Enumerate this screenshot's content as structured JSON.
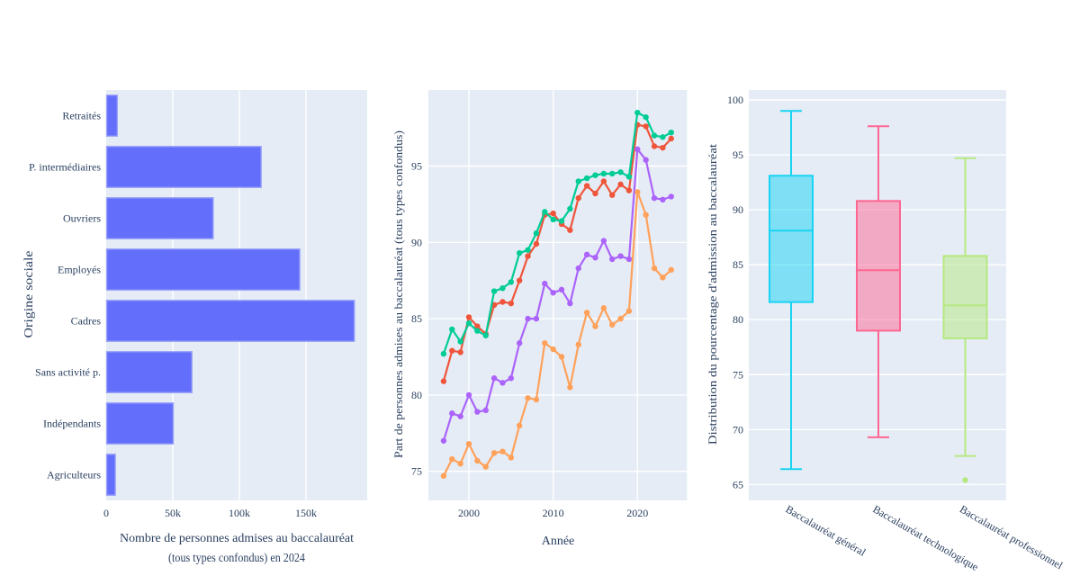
{
  "figure": {
    "background": "#ffffff",
    "plot_background": "#e5ecf6",
    "grid_color": "#ffffff",
    "text_color": "#2a3f5f"
  },
  "chart_data": [
    {
      "id": "bar-origine-sociale",
      "type": "bar",
      "orientation": "horizontal",
      "ylabel": "Origine sociale",
      "xlabel_lines": [
        "Nombre de personnes admises au baccalauréat",
        "(tous types confondus) en 2024"
      ],
      "categories": [
        "Retraités",
        "P. intermédiaires",
        "Ouvriers",
        "Employés",
        "Cadres",
        "Sans activité p.",
        "Indépendants",
        "Agriculteurs"
      ],
      "values": [
        8000,
        116000,
        80000,
        145000,
        186000,
        64000,
        50000,
        6500
      ],
      "bar_color": "#636EFA",
      "bar_edge_color": "#9aa3f8",
      "xlim": [
        0,
        196000
      ],
      "xticks": {
        "values": [
          0,
          50000,
          100000,
          150000
        ],
        "labels": [
          "0",
          "50k",
          "100k",
          "150k"
        ]
      },
      "grid": true
    },
    {
      "id": "line-part-admises",
      "type": "line",
      "xlabel": "Année",
      "ylabel": "Part de personnes admises au baccalauréat (tous types confondus)",
      "x": [
        1997,
        1998,
        1999,
        2000,
        2001,
        2002,
        2003,
        2004,
        2005,
        2006,
        2007,
        2008,
        2009,
        2010,
        2011,
        2012,
        2013,
        2014,
        2015,
        2016,
        2017,
        2018,
        2019,
        2020,
        2021,
        2022,
        2023,
        2024
      ],
      "series": [
        {
          "name": "serie-rouge",
          "color": "#EF553B",
          "values": [
            80.9,
            82.9,
            82.8,
            85.1,
            84.5,
            84.0,
            85.9,
            86.1,
            86.0,
            87.5,
            89.1,
            89.9,
            91.8,
            91.9,
            91.2,
            90.8,
            92.9,
            93.7,
            93.2,
            94.0,
            93.1,
            93.8,
            93.4,
            97.7,
            97.6,
            96.3,
            96.2,
            96.8
          ]
        },
        {
          "name": "serie-verte",
          "color": "#00CC96",
          "values": [
            82.7,
            84.3,
            83.5,
            84.7,
            84.2,
            83.9,
            86.8,
            87.0,
            87.4,
            89.3,
            89.5,
            90.6,
            92.0,
            91.5,
            91.4,
            92.2,
            94.0,
            94.2,
            94.4,
            94.5,
            94.5,
            94.6,
            94.3,
            98.5,
            98.2,
            97.0,
            96.9,
            97.2
          ]
        },
        {
          "name": "serie-violette",
          "color": "#AB63FA",
          "values": [
            77.0,
            78.8,
            78.6,
            80.0,
            78.9,
            79.0,
            81.1,
            80.8,
            81.1,
            83.4,
            85.0,
            85.0,
            87.3,
            86.7,
            86.9,
            86.0,
            88.3,
            89.2,
            89.0,
            90.1,
            88.9,
            89.1,
            88.9,
            96.1,
            95.4,
            92.9,
            92.8,
            93.0
          ]
        },
        {
          "name": "serie-orange",
          "color": "#FFA15A",
          "values": [
            74.7,
            75.8,
            75.5,
            76.8,
            75.7,
            75.3,
            76.2,
            76.3,
            75.9,
            78.0,
            79.8,
            79.7,
            83.4,
            83.0,
            82.5,
            80.5,
            83.3,
            85.4,
            84.5,
            85.7,
            84.6,
            85.0,
            85.5,
            93.3,
            91.8,
            88.3,
            87.7,
            88.2
          ]
        }
      ],
      "xticks": {
        "values": [
          2000,
          2010,
          2020
        ],
        "labels": [
          "2000",
          "2010",
          "2020"
        ]
      },
      "yticks": {
        "values": [
          75,
          80,
          85,
          90,
          95
        ],
        "labels": [
          "75",
          "80",
          "85",
          "90",
          "95"
        ]
      },
      "xlim": [
        1995.2,
        2025.9
      ],
      "ylim": [
        73.1,
        100.0
      ],
      "grid": true,
      "legend": false,
      "markers": true
    },
    {
      "id": "box-distribution-admission",
      "type": "box",
      "ylabel": "Distribution du pourcentage d'admission au baccalauréat",
      "categories": [
        "Baccalauréat général",
        "Baccalauréat technologique",
        "Baccalauréat professionnel"
      ],
      "boxes": [
        {
          "label": "Baccalauréat général",
          "color": "#19D3F3",
          "min": 66.4,
          "q1": 81.6,
          "median": 88.1,
          "q3": 93.1,
          "max": 99.0,
          "outliers": []
        },
        {
          "label": "Baccalauréat technologique",
          "color": "#FF6692",
          "min": 69.3,
          "q1": 79.0,
          "median": 84.5,
          "q3": 90.8,
          "max": 97.6,
          "outliers": []
        },
        {
          "label": "Baccalauréat professionnel",
          "color": "#B6E880",
          "min": 67.6,
          "q1": 78.3,
          "median": 81.3,
          "q3": 85.8,
          "max": 94.7,
          "outliers": [
            65.4
          ]
        }
      ],
      "yticks": {
        "values": [
          65,
          70,
          75,
          80,
          85,
          90,
          95,
          100
        ],
        "labels": [
          "65",
          "70",
          "75",
          "80",
          "85",
          "90",
          "95",
          "100"
        ]
      },
      "ylim": [
        63.9,
        100.9
      ],
      "grid": true
    }
  ]
}
